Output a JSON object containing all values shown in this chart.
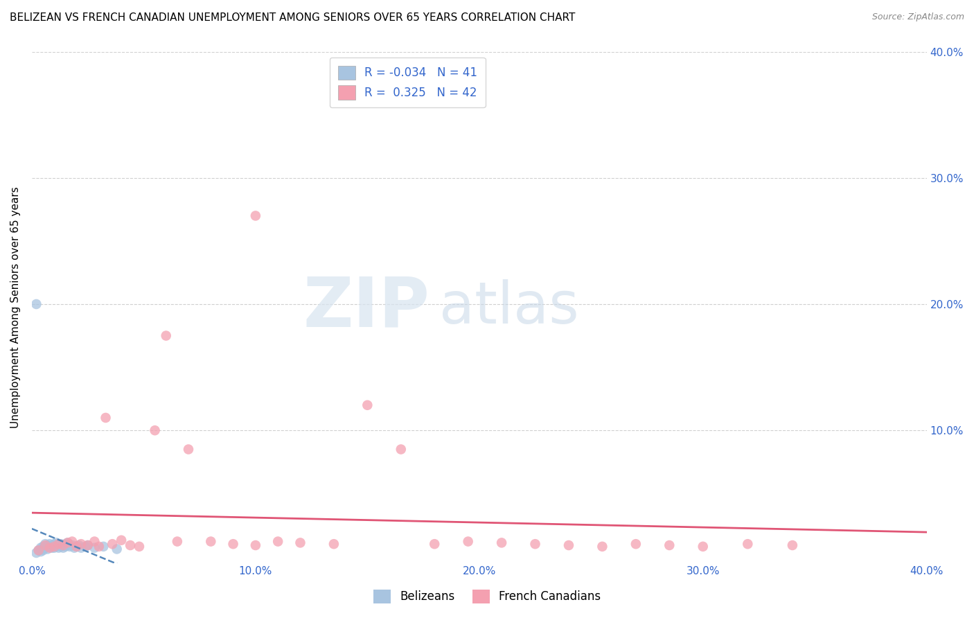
{
  "title": "BELIZEAN VS FRENCH CANADIAN UNEMPLOYMENT AMONG SENIORS OVER 65 YEARS CORRELATION CHART",
  "source": "Source: ZipAtlas.com",
  "ylabel": "Unemployment Among Seniors over 65 years",
  "xlim": [
    0.0,
    0.4
  ],
  "ylim": [
    -0.005,
    0.4
  ],
  "xtick_labels": [
    "0.0%",
    "10.0%",
    "20.0%",
    "30.0%",
    "40.0%"
  ],
  "xtick_vals": [
    0.0,
    0.1,
    0.2,
    0.3,
    0.4
  ],
  "right_ytick_labels": [
    "10.0%",
    "20.0%",
    "30.0%",
    "40.0%"
  ],
  "right_ytick_vals": [
    0.1,
    0.2,
    0.3,
    0.4
  ],
  "r_belizean": -0.034,
  "n_belizean": 41,
  "r_french": 0.325,
  "n_french": 42,
  "belizean_color": "#a8c4e0",
  "french_color": "#f4a0b0",
  "belizean_line_color": "#5588bb",
  "french_line_color": "#e05575",
  "watermark_zip": "ZIP",
  "watermark_atlas": "atlas",
  "belizean_x": [
    0.002,
    0.003,
    0.004,
    0.004,
    0.005,
    0.005,
    0.005,
    0.006,
    0.006,
    0.007,
    0.007,
    0.008,
    0.008,
    0.009,
    0.009,
    0.01,
    0.01,
    0.011,
    0.011,
    0.012,
    0.012,
    0.013,
    0.013,
    0.014,
    0.014,
    0.015,
    0.015,
    0.016,
    0.016,
    0.017,
    0.018,
    0.019,
    0.02,
    0.021,
    0.022,
    0.024,
    0.025,
    0.028,
    0.032,
    0.038,
    0.002
  ],
  "belizean_y": [
    0.003,
    0.005,
    0.004,
    0.007,
    0.005,
    0.006,
    0.008,
    0.007,
    0.01,
    0.006,
    0.009,
    0.008,
    0.01,
    0.007,
    0.009,
    0.007,
    0.01,
    0.008,
    0.011,
    0.007,
    0.009,
    0.008,
    0.01,
    0.007,
    0.009,
    0.008,
    0.01,
    0.009,
    0.011,
    0.008,
    0.009,
    0.007,
    0.008,
    0.009,
    0.007,
    0.008,
    0.009,
    0.007,
    0.008,
    0.006,
    0.2
  ],
  "french_x": [
    0.003,
    0.006,
    0.008,
    0.01,
    0.012,
    0.014,
    0.016,
    0.018,
    0.02,
    0.022,
    0.025,
    0.028,
    0.03,
    0.033,
    0.036,
    0.04,
    0.044,
    0.048,
    0.055,
    0.06,
    0.065,
    0.07,
    0.08,
    0.09,
    0.1,
    0.11,
    0.12,
    0.135,
    0.15,
    0.165,
    0.18,
    0.195,
    0.21,
    0.225,
    0.24,
    0.255,
    0.27,
    0.285,
    0.3,
    0.32,
    0.34,
    0.1
  ],
  "french_y": [
    0.005,
    0.009,
    0.007,
    0.008,
    0.01,
    0.009,
    0.011,
    0.012,
    0.008,
    0.01,
    0.009,
    0.012,
    0.008,
    0.11,
    0.01,
    0.013,
    0.009,
    0.008,
    0.1,
    0.175,
    0.012,
    0.085,
    0.012,
    0.01,
    0.009,
    0.012,
    0.011,
    0.01,
    0.12,
    0.085,
    0.01,
    0.012,
    0.011,
    0.01,
    0.009,
    0.008,
    0.01,
    0.009,
    0.008,
    0.01,
    0.009,
    0.27
  ]
}
